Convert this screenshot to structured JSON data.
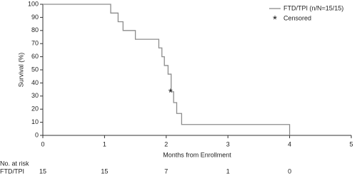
{
  "chart_data": {
    "type": "step",
    "x_label": "Months from Enrollment",
    "y_label": "Survival (%)",
    "xlim": [
      0,
      5
    ],
    "xticks": [
      0,
      1,
      2,
      3,
      4,
      5
    ],
    "ylim": [
      0,
      100
    ],
    "yticks": [
      0,
      10,
      20,
      30,
      40,
      50,
      60,
      70,
      80,
      90,
      100
    ],
    "legend": "top-right",
    "series": [
      {
        "name": "FTD/TPI (n/N=15/15)",
        "color": "#8c8c8c",
        "x": [
          0,
          1.1,
          1.22,
          1.3,
          1.5,
          1.88,
          1.93,
          1.97,
          2.03,
          2.08,
          2.12,
          2.17,
          2.25,
          4.0
        ],
        "values": [
          100,
          93.3,
          86.7,
          80,
          73.3,
          66.7,
          60,
          53.3,
          46.7,
          33.3,
          25,
          16.7,
          8.3,
          0
        ]
      },
      {
        "name": "Censored",
        "color": "#111111",
        "marker": "*",
        "x": [
          2.07
        ],
        "values": [
          33.3
        ]
      }
    ],
    "risk_table": {
      "title": "No. at risk",
      "rows": [
        {
          "label": "FTD/TPI",
          "values": [
            15,
            15,
            7,
            1,
            0
          ]
        }
      ]
    }
  }
}
